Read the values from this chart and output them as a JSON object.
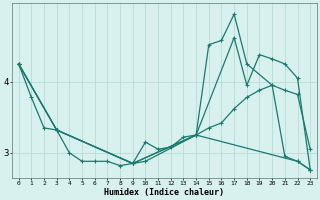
{
  "title": "",
  "xlabel": "Humidex (Indice chaleur)",
  "background_color": "#d8f0ee",
  "grid_color": "#b8dcd8",
  "line_color": "#1a7a6e",
  "xlim": [
    -0.5,
    23.5
  ],
  "ylim": [
    2.65,
    5.1
  ],
  "yticks": [
    3,
    4
  ],
  "xticks": [
    0,
    1,
    2,
    3,
    4,
    5,
    6,
    7,
    8,
    9,
    10,
    11,
    12,
    13,
    14,
    15,
    16,
    17,
    18,
    19,
    20,
    21,
    22,
    23
  ],
  "series": {
    "line1_x": [
      0,
      1,
      2,
      3,
      4,
      5,
      6,
      7,
      8,
      9,
      10,
      11,
      12,
      13,
      14,
      15,
      16,
      17,
      18,
      19,
      20,
      21,
      22,
      23
    ],
    "line1_y": [
      4.25,
      3.78,
      3.35,
      3.32,
      3.0,
      2.88,
      2.88,
      2.88,
      2.82,
      2.85,
      3.15,
      3.05,
      3.08,
      3.22,
      3.25,
      3.35,
      3.42,
      3.62,
      3.78,
      3.88,
      3.95,
      3.88,
      3.82,
      3.05
    ],
    "line2_x": [
      0,
      3,
      9,
      10,
      14,
      15,
      16,
      17,
      18,
      20,
      21,
      22,
      23
    ],
    "line2_y": [
      4.25,
      3.32,
      2.85,
      2.88,
      3.25,
      4.52,
      4.58,
      4.95,
      4.25,
      3.95,
      2.95,
      2.88,
      2.76
    ],
    "line3_x": [
      0,
      3,
      9,
      14,
      22,
      23
    ],
    "line3_y": [
      4.25,
      3.32,
      2.85,
      3.25,
      2.88,
      2.76
    ],
    "line4_x": [
      0,
      3,
      9,
      14,
      17,
      18,
      19,
      20,
      21,
      22,
      23
    ],
    "line4_y": [
      4.25,
      3.32,
      2.85,
      3.25,
      4.62,
      3.95,
      4.38,
      4.32,
      4.25,
      4.05,
      2.76
    ]
  }
}
